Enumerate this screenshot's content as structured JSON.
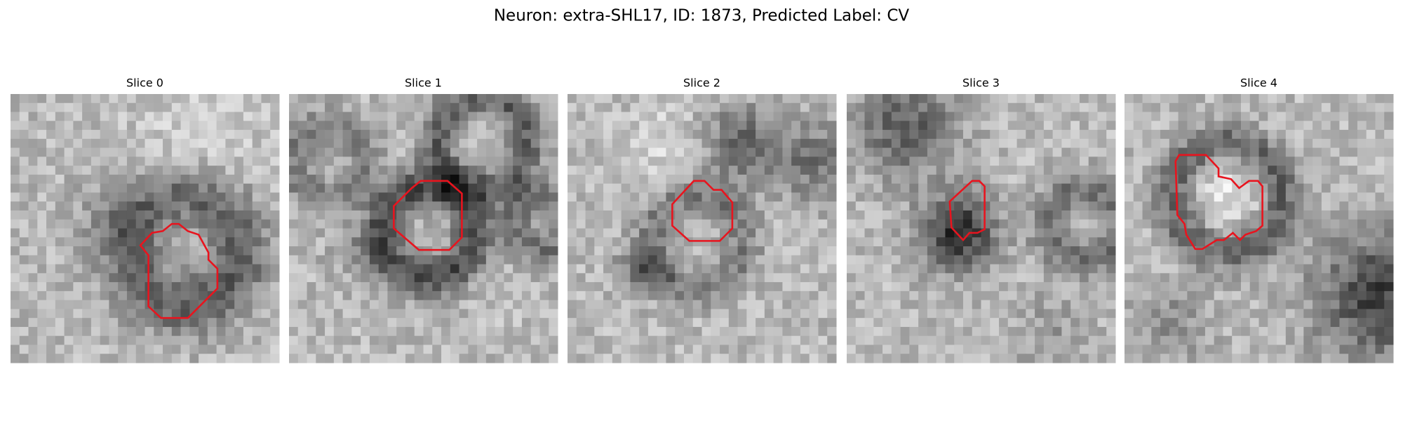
{
  "title": "Neuron: extra-SHL17, ID: 1873, Predicted Label: CV",
  "panels": [
    {
      "title": "Slice 0"
    },
    {
      "title": "Slice 1"
    },
    {
      "title": "Slice 2"
    },
    {
      "title": "Slice 3"
    },
    {
      "title": "Slice 4"
    }
  ]
}
